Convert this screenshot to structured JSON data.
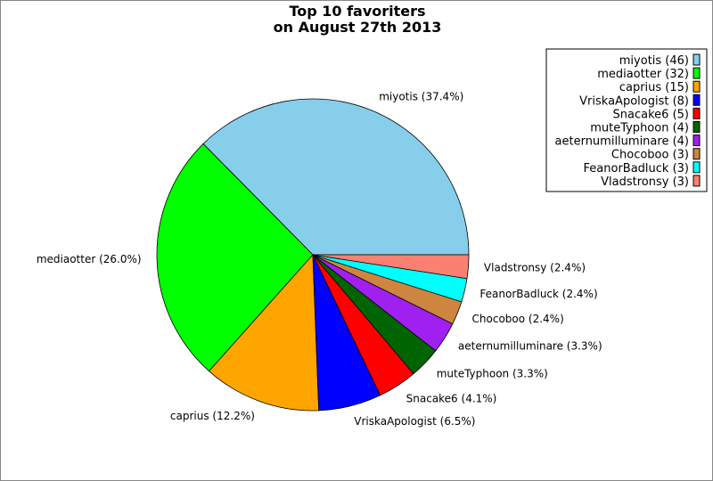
{
  "chart_data": {
    "type": "pie",
    "title": [
      "Top 10 favoriters",
      "on August 27th 2013"
    ],
    "slices": [
      {
        "name": "miyotis",
        "value": 46,
        "label": "miyotis (37.4%)",
        "legend": "miyotis (46)",
        "color": "#87ceeb"
      },
      {
        "name": "mediaotter",
        "value": 32,
        "label": "mediaotter (26.0%)",
        "legend": "mediaotter (32)",
        "color": "#00ff00"
      },
      {
        "name": "caprius",
        "value": 15,
        "label": "caprius (12.2%)",
        "legend": "caprius (15)",
        "color": "#ffa500"
      },
      {
        "name": "VriskaApologist",
        "value": 8,
        "label": "VriskaApologist (6.5%)",
        "legend": "VriskaApologist (8)",
        "color": "#0000ff"
      },
      {
        "name": "Snacake6",
        "value": 5,
        "label": "Snacake6 (4.1%)",
        "legend": "Snacake6 (5)",
        "color": "#ff0000"
      },
      {
        "name": "muteTyphoon",
        "value": 4,
        "label": "muteTyphoon (3.3%)",
        "legend": "muteTyphoon (4)",
        "color": "#006400"
      },
      {
        "name": "aeternumilluminare",
        "value": 4,
        "label": "aeternumilluminare (3.3%)",
        "legend": "aeternumilluminare (4)",
        "color": "#a020f0"
      },
      {
        "name": "Chocoboo",
        "value": 3,
        "label": "Chocoboo (2.4%)",
        "legend": "Chocoboo (3)",
        "color": "#cd853f"
      },
      {
        "name": "FeanorBadluck",
        "value": 3,
        "label": "FeanorBadluck (2.4%)",
        "legend": "FeanorBadluck (3)",
        "color": "#00ffff"
      },
      {
        "name": "Vladstronsy",
        "value": 3,
        "label": "Vladstronsy (2.4%)",
        "legend": "Vladstronsy (3)",
        "color": "#fa8072"
      }
    ],
    "start_angle_deg": 0,
    "direction": "counterclockwise",
    "legend_position": "top-right"
  }
}
